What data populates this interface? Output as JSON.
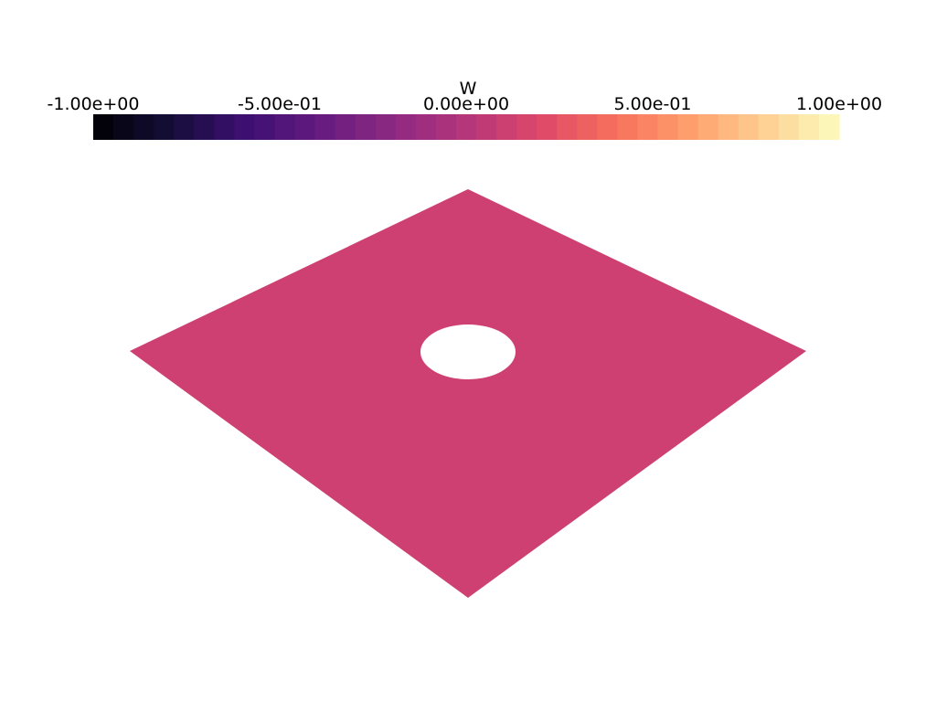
{
  "scalar_bar": {
    "title": "W",
    "range": [
      -1.0,
      1.0
    ],
    "tick_values": [
      -1.0,
      -0.5,
      0.0,
      0.5,
      1.0
    ],
    "tick_labels": [
      "-1.00e+00",
      "-5.00e-01",
      "0.00e+00",
      "5.00e-01",
      "1.00e+00"
    ],
    "colormap": "magma",
    "color_stops": [
      "#000004",
      "#140e36",
      "#3b0f70",
      "#641a80",
      "#8c2981",
      "#b5367a",
      "#de4968",
      "#f7705c",
      "#fe9f6d",
      "#fecf92",
      "#fcfdbf"
    ],
    "n_colors": 37
  },
  "mesh": {
    "shape": "square plate with circular hole",
    "value": 0.0,
    "surface_color": "#cd4071",
    "hole_color": "#ffffff"
  },
  "background_color": "#ffffff"
}
